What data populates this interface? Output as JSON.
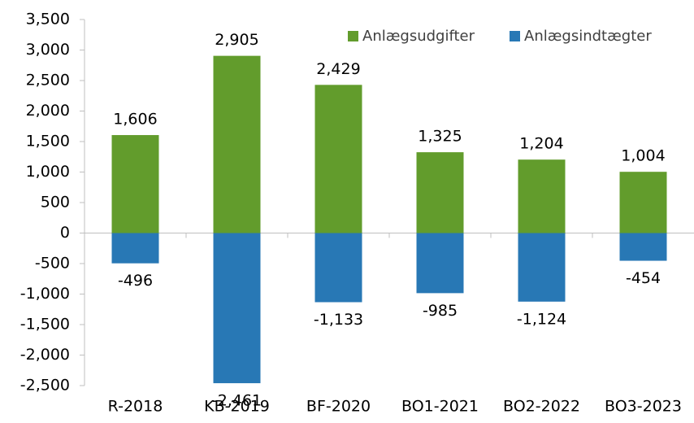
{
  "chart_data": {
    "type": "bar",
    "categories": [
      "R-2018",
      "KB-2019",
      "BF-2020",
      "BO1-2021",
      "BO2-2022",
      "BO3-2023"
    ],
    "series": [
      {
        "name": "Anlægsudgifter",
        "color": "#629c2c",
        "values": [
          1606,
          2905,
          2429,
          1325,
          1204,
          1004
        ],
        "value_labels": [
          "1,606",
          "2,905",
          "2,429",
          "1,325",
          "1,204",
          "1,004"
        ]
      },
      {
        "name": "Anlægsindtægter",
        "color": "#2878b5",
        "values": [
          -496,
          -2461,
          -1133,
          -985,
          -1124,
          -454
        ],
        "value_labels": [
          "-496",
          "-2,461",
          "-1,133",
          "-985",
          "-1,124",
          "-454"
        ]
      }
    ],
    "ylim": [
      -2500,
      3500
    ],
    "yticks": [
      {
        "value": 3500,
        "label": "3,500"
      },
      {
        "value": 3000,
        "label": "3,000"
      },
      {
        "value": 2500,
        "label": "2,500"
      },
      {
        "value": 2000,
        "label": "2,000"
      },
      {
        "value": 1500,
        "label": "1,500"
      },
      {
        "value": 1000,
        "label": "1,000"
      },
      500,
      0,
      -500,
      {
        "value": -1000,
        "label": "-1,000"
      },
      {
        "value": -1500,
        "label": "-1,500"
      },
      {
        "value": -2000,
        "label": "-2,000"
      },
      {
        "value": -2500,
        "label": "-2,500"
      }
    ],
    "legend": "top-right",
    "grid": false
  }
}
